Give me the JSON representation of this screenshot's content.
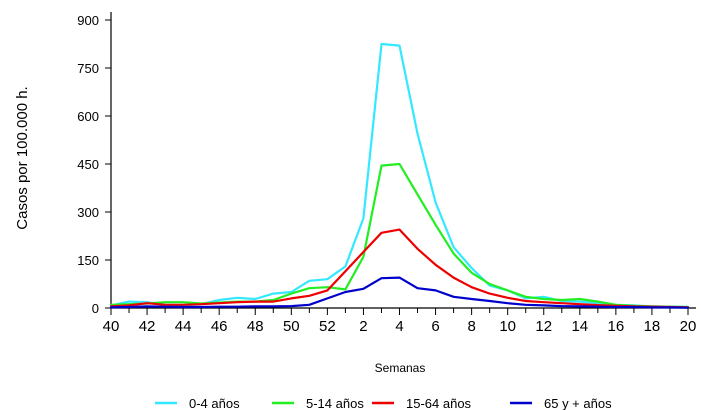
{
  "chart_data": {
    "type": "line",
    "title": "",
    "xlabel": "Semanas",
    "ylabel": "Casos por 100.000 h.",
    "ylim": [
      0,
      900
    ],
    "yticks": [
      0,
      150,
      300,
      450,
      600,
      750,
      900
    ],
    "x": [
      "40",
      "41",
      "42",
      "43",
      "44",
      "45",
      "46",
      "47",
      "48",
      "49",
      "50",
      "51",
      "52",
      "1",
      "2",
      "3",
      "4",
      "5",
      "6",
      "7",
      "8",
      "9",
      "10",
      "11",
      "12",
      "13",
      "14",
      "15",
      "16",
      "17",
      "18",
      "19",
      "20"
    ],
    "xtick_labels": [
      "40",
      "42",
      "44",
      "46",
      "48",
      "50",
      "52",
      "2",
      "4",
      "6",
      "8",
      "10",
      "12",
      "14",
      "16",
      "18",
      "20"
    ],
    "grid": false,
    "legend_position": "bottom",
    "series": [
      {
        "name": "0-4 años",
        "color": "#33e8ff",
        "values": [
          8,
          20,
          18,
          10,
          8,
          12,
          25,
          32,
          28,
          45,
          50,
          85,
          90,
          130,
          280,
          825,
          820,
          545,
          330,
          190,
          125,
          70,
          55,
          30,
          35,
          22,
          20,
          15,
          10,
          8,
          5,
          4,
          3
        ]
      },
      {
        "name": "5-14 años",
        "color": "#22ee22",
        "values": [
          10,
          12,
          14,
          18,
          18,
          14,
          17,
          20,
          20,
          25,
          45,
          62,
          65,
          58,
          160,
          445,
          450,
          355,
          260,
          170,
          110,
          75,
          55,
          35,
          28,
          25,
          28,
          20,
          10,
          7,
          5,
          4,
          3
        ]
      },
      {
        "name": "15-64 años",
        "color": "#ee0000",
        "values": [
          5,
          8,
          15,
          10,
          10,
          12,
          15,
          18,
          20,
          20,
          30,
          38,
          55,
          115,
          175,
          235,
          245,
          185,
          135,
          95,
          65,
          45,
          32,
          22,
          18,
          15,
          12,
          9,
          7,
          5,
          4,
          3,
          2
        ]
      },
      {
        "name": "65 y + años",
        "color": "#0000cc",
        "values": [
          2,
          3,
          5,
          4,
          3,
          3,
          4,
          4,
          5,
          5,
          6,
          10,
          30,
          50,
          60,
          93,
          95,
          62,
          55,
          35,
          28,
          22,
          15,
          10,
          8,
          6,
          5,
          4,
          3,
          3,
          2,
          2,
          1
        ]
      }
    ]
  }
}
